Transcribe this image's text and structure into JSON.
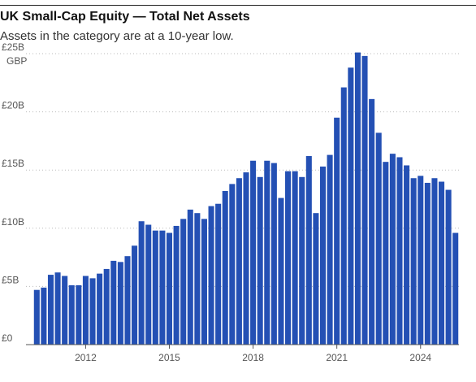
{
  "chart_data": {
    "type": "bar",
    "title": "UK Small-Cap Equity — Total Net Assets",
    "subtitle": "Assets in the category are at a 10-year low.",
    "y_unit": "GBP",
    "ylim": [
      0,
      25
    ],
    "y_ticks": [
      0,
      5,
      10,
      15,
      20,
      25
    ],
    "y_tick_labels": [
      "£0",
      "£5B",
      "£10B",
      "£15B",
      "£20B",
      "£25B"
    ],
    "x_tick_labels": [
      "2012",
      "2015",
      "2018",
      "2021",
      "2024"
    ],
    "x_tick_positions": [
      2012,
      2015,
      2018,
      2021,
      2024
    ],
    "x_start": 2010.25,
    "x_step": 0.25,
    "grid": true,
    "bar_color": "#2450b4",
    "values": [
      4.7,
      4.9,
      6.0,
      6.2,
      5.9,
      5.1,
      5.1,
      5.9,
      5.7,
      6.1,
      6.5,
      7.2,
      7.1,
      7.6,
      8.5,
      10.6,
      10.3,
      9.8,
      9.8,
      9.6,
      10.2,
      10.8,
      11.6,
      11.3,
      10.8,
      11.9,
      12.1,
      13.2,
      13.8,
      14.3,
      14.8,
      15.8,
      14.4,
      15.8,
      15.6,
      12.6,
      14.9,
      14.9,
      14.4,
      16.2,
      11.3,
      15.3,
      16.3,
      19.5,
      22.1,
      23.8,
      25.1,
      24.8,
      21.1,
      18.2,
      15.7,
      16.4,
      16.1,
      15.4,
      14.3,
      14.5,
      13.9,
      14.3,
      14.0,
      13.3,
      9.6
    ]
  }
}
